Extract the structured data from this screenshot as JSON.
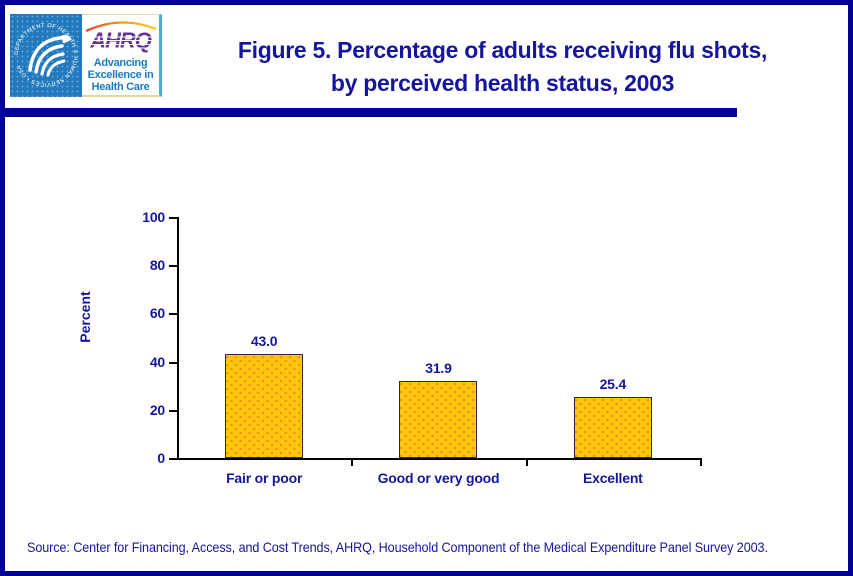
{
  "header": {
    "title_line1": "Figure 5. Percentage of adults receiving flu shots,",
    "title_line2": "by perceived health status, 2003",
    "logo": {
      "hhs_circular_text": "DEPARTMENT OF HEALTH & HUMAN SERVICES • USA",
      "ahrq_acronym": "AHRQ",
      "tagline_line1": "Advancing",
      "tagline_line2": "Excellence in",
      "tagline_line3": "Health Care"
    }
  },
  "chart_data": {
    "type": "bar",
    "title": "Figure 5. Percentage of adults receiving flu shots, by perceived health status, 2003",
    "categories": [
      "Fair or poor",
      "Good or very good",
      "Excellent"
    ],
    "values": [
      43.0,
      31.9,
      25.4
    ],
    "value_labels": [
      "43.0",
      "31.9",
      "25.4"
    ],
    "xlabel": "",
    "ylabel": "Percent",
    "ylim": [
      0,
      100
    ],
    "yticks": [
      0,
      20,
      40,
      60,
      80,
      100
    ],
    "grid": false,
    "legend": "none",
    "bar_fill": "#FFC60D",
    "bar_dot_color": "#F58220",
    "bar_border": "#2B2B2B",
    "label_color": "#16169B"
  },
  "footer": {
    "source": "Source: Center for Financing, Access, and Cost Trends, AHRQ, Household Component of the Medical Expenditure Panel Survey 2003."
  },
  "colors": {
    "page_border": "#000096",
    "divider_bar": "#000096",
    "text_navy": "#16169B",
    "hhs_blue": "#2279BE",
    "ahrq_purple": "#6B3094",
    "tagline_blue": "#1F7AC0"
  }
}
